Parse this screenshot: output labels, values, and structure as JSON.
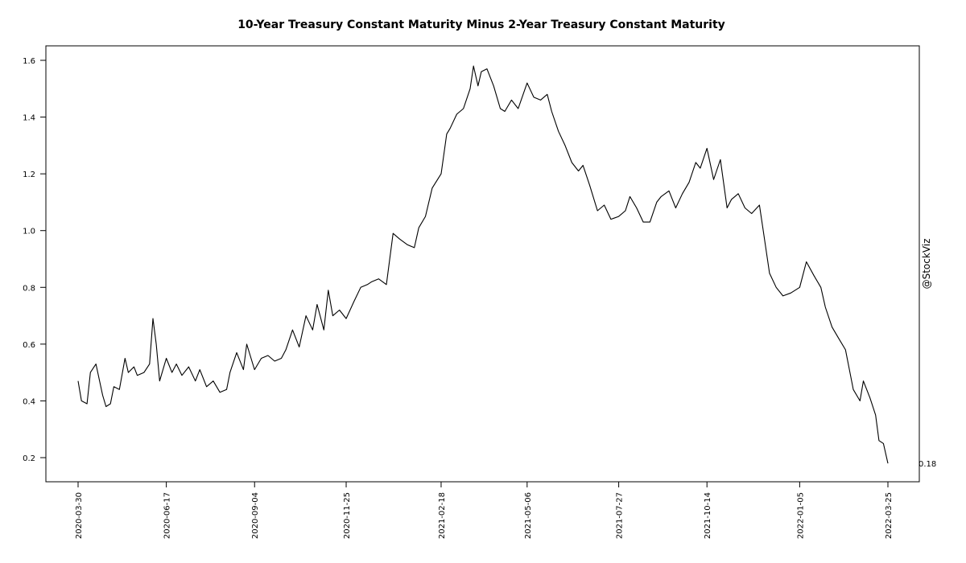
{
  "chart_data": {
    "type": "line",
    "title": "10-Year Treasury Constant Maturity Minus 2-Year Treasury Constant Maturity",
    "xlabel": "",
    "ylabel": "",
    "watermark": "@StockViz",
    "last_value_label": "0.18",
    "x_tick_labels": [
      "2020-03-30",
      "2020-06-17",
      "2020-09-04",
      "2020-11-25",
      "2021-02-18",
      "2021-05-06",
      "2021-07-27",
      "2021-10-14",
      "2022-01-05",
      "2022-03-25"
    ],
    "y_ticks": [
      0.2,
      0.4,
      0.6,
      0.8,
      1.0,
      1.2,
      1.4,
      1.6
    ],
    "y_tick_labels": [
      "0.2",
      "0.4",
      "0.6",
      "0.8",
      "1.0",
      "1.2",
      "1.4",
      "1.6"
    ],
    "ylim": [
      0.15,
      1.65
    ],
    "grid": false,
    "line_color": "#000000",
    "series": [
      {
        "x": [
          "2020-03-30",
          "2020-04-02",
          "2020-04-07",
          "2020-04-10",
          "2020-04-15",
          "2020-04-21",
          "2020-04-24",
          "2020-04-28",
          "2020-05-01",
          "2020-05-06",
          "2020-05-11",
          "2020-05-14",
          "2020-05-19",
          "2020-05-22",
          "2020-05-28",
          "2020-06-02",
          "2020-06-05",
          "2020-06-08",
          "2020-06-11",
          "2020-06-17",
          "2020-06-22",
          "2020-06-26",
          "2020-07-01",
          "2020-07-07",
          "2020-07-13",
          "2020-07-17",
          "2020-07-23",
          "2020-07-29",
          "2020-08-04",
          "2020-08-10",
          "2020-08-13",
          "2020-08-19",
          "2020-08-25",
          "2020-08-28",
          "2020-09-04",
          "2020-09-10",
          "2020-09-16",
          "2020-09-22",
          "2020-09-28",
          "2020-10-02",
          "2020-10-08",
          "2020-10-14",
          "2020-10-20",
          "2020-10-26",
          "2020-10-30",
          "2020-11-05",
          "2020-11-09",
          "2020-11-13",
          "2020-11-19",
          "2020-11-25",
          "2020-12-02",
          "2020-12-08",
          "2020-12-14",
          "2020-12-18",
          "2020-12-24",
          "2020-12-31",
          "2021-01-06",
          "2021-01-12",
          "2021-01-19",
          "2021-01-25",
          "2021-01-29",
          "2021-02-04",
          "2021-02-10",
          "2021-02-18",
          "2021-02-23",
          "2021-02-26",
          "2021-03-04",
          "2021-03-10",
          "2021-03-16",
          "2021-03-19",
          "2021-03-23",
          "2021-03-26",
          "2021-03-31",
          "2021-04-06",
          "2021-04-12",
          "2021-04-16",
          "2021-04-22",
          "2021-04-28",
          "2021-05-06",
          "2021-05-12",
          "2021-05-18",
          "2021-05-24",
          "2021-05-28",
          "2021-06-03",
          "2021-06-09",
          "2021-06-15",
          "2021-06-21",
          "2021-06-25",
          "2021-07-01",
          "2021-07-08",
          "2021-07-14",
          "2021-07-20",
          "2021-07-27",
          "2021-08-02",
          "2021-08-06",
          "2021-08-12",
          "2021-08-18",
          "2021-08-24",
          "2021-08-30",
          "2021-09-03",
          "2021-09-10",
          "2021-09-16",
          "2021-09-22",
          "2021-09-28",
          "2021-10-04",
          "2021-10-08",
          "2021-10-14",
          "2021-10-20",
          "2021-10-26",
          "2021-11-01",
          "2021-11-05",
          "2021-11-11",
          "2021-11-17",
          "2021-11-23",
          "2021-11-30",
          "2021-12-03",
          "2021-12-09",
          "2021-12-15",
          "2021-12-21",
          "2021-12-28",
          "2022-01-05",
          "2022-01-11",
          "2022-01-18",
          "2022-01-24",
          "2022-01-28",
          "2022-02-03",
          "2022-02-09",
          "2022-02-15",
          "2022-02-22",
          "2022-02-28",
          "2022-03-03",
          "2022-03-09",
          "2022-03-14",
          "2022-03-17",
          "2022-03-21",
          "2022-03-25"
        ],
        "values": [
          0.47,
          0.4,
          0.39,
          0.5,
          0.53,
          0.42,
          0.38,
          0.39,
          0.45,
          0.44,
          0.55,
          0.5,
          0.52,
          0.49,
          0.5,
          0.53,
          0.69,
          0.6,
          0.47,
          0.55,
          0.5,
          0.53,
          0.49,
          0.52,
          0.47,
          0.51,
          0.45,
          0.47,
          0.43,
          0.44,
          0.5,
          0.57,
          0.51,
          0.6,
          0.51,
          0.55,
          0.56,
          0.54,
          0.55,
          0.58,
          0.65,
          0.59,
          0.7,
          0.65,
          0.74,
          0.65,
          0.79,
          0.7,
          0.72,
          0.69,
          0.75,
          0.8,
          0.81,
          0.82,
          0.83,
          0.81,
          0.99,
          0.97,
          0.95,
          0.94,
          1.01,
          1.05,
          1.15,
          1.2,
          1.34,
          1.36,
          1.41,
          1.43,
          1.5,
          1.58,
          1.51,
          1.56,
          1.57,
          1.51,
          1.43,
          1.42,
          1.46,
          1.43,
          1.52,
          1.47,
          1.46,
          1.48,
          1.42,
          1.35,
          1.3,
          1.24,
          1.21,
          1.23,
          1.16,
          1.07,
          1.09,
          1.04,
          1.05,
          1.07,
          1.12,
          1.08,
          1.03,
          1.03,
          1.1,
          1.12,
          1.14,
          1.08,
          1.13,
          1.17,
          1.24,
          1.22,
          1.29,
          1.18,
          1.25,
          1.08,
          1.11,
          1.13,
          1.08,
          1.06,
          1.09,
          1.01,
          0.85,
          0.8,
          0.77,
          0.78,
          0.8,
          0.89,
          0.84,
          0.8,
          0.73,
          0.66,
          0.62,
          0.58,
          0.44,
          0.4,
          0.47,
          0.41,
          0.35,
          0.26,
          0.25,
          0.18
        ]
      }
    ]
  }
}
